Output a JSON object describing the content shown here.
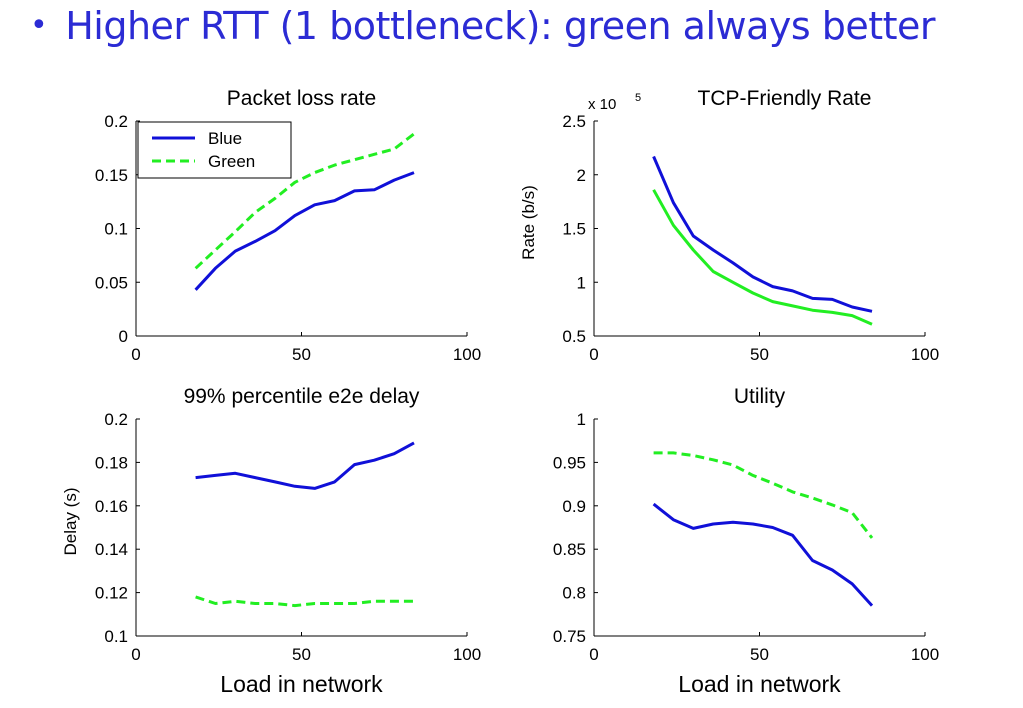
{
  "slide": {
    "bullet": "•",
    "title": "Higher RTT (1 bottleneck): green always better"
  },
  "colors": {
    "blue": "#1010d8",
    "green": "#22ee22",
    "title": "#2b2bd4"
  },
  "chart_data": [
    {
      "id": "loss",
      "type": "line",
      "title": "Packet loss rate",
      "xlabel": "",
      "ylabel": "",
      "xlim": [
        0,
        100
      ],
      "ylim": [
        0,
        0.2
      ],
      "xticks": [
        0,
        50,
        100
      ],
      "yticks": [
        0,
        0.05,
        0.1,
        0.15,
        0.2
      ],
      "ytick_labels": [
        "0",
        "0.05",
        "0.1",
        "0.15",
        "0.2"
      ],
      "legend": {
        "position": "top-left",
        "entries": [
          "Blue",
          "Green"
        ]
      },
      "x": [
        18,
        24,
        30,
        36,
        42,
        48,
        54,
        60,
        66,
        72,
        78,
        84
      ],
      "series": [
        {
          "name": "Blue",
          "color": "#1010d8",
          "dashed": false,
          "values": [
            0.043,
            0.063,
            0.079,
            0.088,
            0.098,
            0.112,
            0.122,
            0.126,
            0.135,
            0.136,
            0.145,
            0.152
          ]
        },
        {
          "name": "Green",
          "color": "#22ee22",
          "dashed": true,
          "values": [
            0.063,
            0.08,
            0.097,
            0.115,
            0.128,
            0.143,
            0.152,
            0.159,
            0.164,
            0.169,
            0.174,
            0.188
          ]
        }
      ]
    },
    {
      "id": "rate",
      "type": "line",
      "title": "TCP-Friendly Rate",
      "exponent_label": "x 10",
      "exponent_power": "5",
      "xlabel": "",
      "ylabel": "Rate (b/s)",
      "xlim": [
        0,
        100
      ],
      "ylim": [
        0.5,
        2.5
      ],
      "xticks": [
        0,
        50,
        100
      ],
      "yticks": [
        0.5,
        1,
        1.5,
        2,
        2.5
      ],
      "ytick_labels": [
        "0.5",
        "1",
        "1.5",
        "2",
        "2.5"
      ],
      "x": [
        18,
        24,
        30,
        36,
        42,
        48,
        54,
        60,
        66,
        72,
        78,
        84
      ],
      "series": [
        {
          "color": "#1010d8",
          "dashed": false,
          "values": [
            2.17,
            1.74,
            1.43,
            1.3,
            1.18,
            1.05,
            0.96,
            0.92,
            0.85,
            0.84,
            0.77,
            0.73
          ]
        },
        {
          "color": "#22ee22",
          "dashed": false,
          "values": [
            1.86,
            1.53,
            1.3,
            1.1,
            1.0,
            0.9,
            0.82,
            0.78,
            0.74,
            0.72,
            0.69,
            0.61
          ]
        }
      ]
    },
    {
      "id": "delay",
      "type": "line",
      "title": "99% percentile e2e delay",
      "xlabel": "Load in network",
      "ylabel": "Delay (s)",
      "xlim": [
        0,
        100
      ],
      "ylim": [
        0.1,
        0.2
      ],
      "xticks": [
        0,
        50,
        100
      ],
      "yticks": [
        0.1,
        0.12,
        0.14,
        0.16,
        0.18,
        0.2
      ],
      "ytick_labels": [
        "0.1",
        "0.12",
        "0.14",
        "0.16",
        "0.18",
        "0.2"
      ],
      "x": [
        18,
        24,
        30,
        36,
        42,
        48,
        54,
        60,
        66,
        72,
        78,
        84
      ],
      "series": [
        {
          "color": "#1010d8",
          "dashed": false,
          "values": [
            0.173,
            0.174,
            0.175,
            0.173,
            0.171,
            0.169,
            0.168,
            0.171,
            0.179,
            0.181,
            0.184,
            0.189
          ]
        },
        {
          "color": "#22ee22",
          "dashed": true,
          "values": [
            0.118,
            0.115,
            0.116,
            0.115,
            0.115,
            0.114,
            0.115,
            0.115,
            0.115,
            0.116,
            0.116,
            0.116
          ]
        }
      ]
    },
    {
      "id": "utility",
      "type": "line",
      "title": "Utility",
      "xlabel": "Load in network",
      "ylabel": "",
      "xlim": [
        0,
        100
      ],
      "ylim": [
        0.75,
        1
      ],
      "xticks": [
        0,
        50,
        100
      ],
      "yticks": [
        0.75,
        0.8,
        0.85,
        0.9,
        0.95,
        1
      ],
      "ytick_labels": [
        "0.75",
        "0.8",
        "0.85",
        "0.9",
        "0.95",
        "1"
      ],
      "x": [
        18,
        24,
        30,
        36,
        42,
        48,
        54,
        60,
        66,
        72,
        78,
        84
      ],
      "series": [
        {
          "color": "#1010d8",
          "dashed": false,
          "values": [
            0.902,
            0.884,
            0.874,
            0.879,
            0.881,
            0.879,
            0.875,
            0.866,
            0.837,
            0.826,
            0.81,
            0.785
          ]
        },
        {
          "color": "#22ee22",
          "dashed": true,
          "values": [
            0.961,
            0.961,
            0.958,
            0.953,
            0.947,
            0.935,
            0.926,
            0.916,
            0.909,
            0.901,
            0.892,
            0.863
          ]
        }
      ]
    }
  ]
}
